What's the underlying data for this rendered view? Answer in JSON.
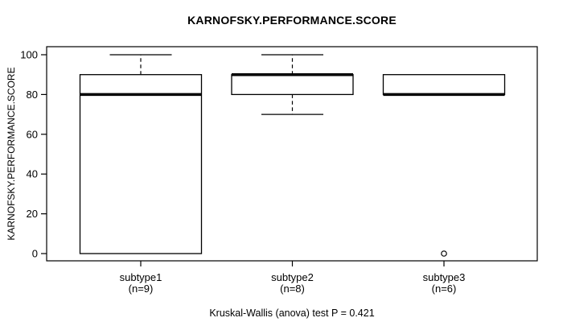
{
  "title": "KARNOFSKY.PERFORMANCE.SCORE",
  "caption": "Kruskal-Wallis (anova) test P = 0.421",
  "colors": {
    "foreground": "#000000",
    "background": "#ffffff"
  },
  "chart_data": {
    "type": "boxplot",
    "title": "KARNOFSKY.PERFORMANCE.SCORE",
    "xlabel": "",
    "ylabel": "KARNOFSKY.PERFORMANCE.SCORE",
    "ylim": [
      0,
      100
    ],
    "yticks": [
      0,
      20,
      40,
      60,
      80,
      100
    ],
    "grid": false,
    "legend": "none",
    "categories": [
      "subtype1",
      "subtype2",
      "subtype3"
    ],
    "group_sizes": [
      9,
      8,
      6
    ],
    "boxes": [
      {
        "group": "subtype1",
        "n_label": "(n=9)",
        "whisker_low": 0,
        "q1": 0,
        "median": 80,
        "q3": 90,
        "whisker_high": 100,
        "outliers": []
      },
      {
        "group": "subtype2",
        "n_label": "(n=8)",
        "whisker_low": 70,
        "q1": 80,
        "median": 90,
        "q3": 90,
        "whisker_high": 100,
        "outliers": []
      },
      {
        "group": "subtype3",
        "n_label": "(n=6)",
        "whisker_low": 80,
        "q1": 80,
        "median": 80,
        "q3": 90,
        "whisker_high": 90,
        "outliers": [
          0
        ]
      }
    ],
    "annotation": "Kruskal-Wallis (anova) test P = 0.421"
  }
}
